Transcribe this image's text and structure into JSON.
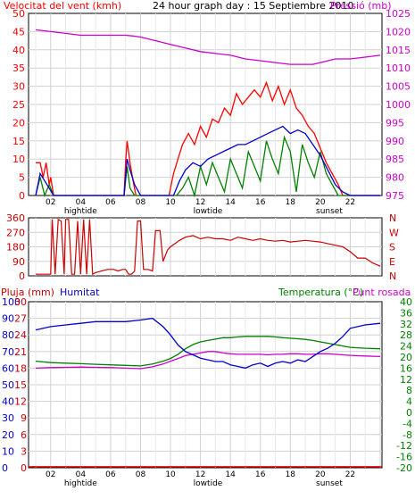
{
  "header": {
    "wind_title": "Velocitat del vent (kmh)",
    "main_title": "24 hour graph day : 15 Septiembre 2010",
    "pressure_title": "Pressió (mb)",
    "rain_title": "Pluja (mm)",
    "humidity_title": "Humitat",
    "temp_title": "Temperatura (°C)",
    "dew_title": "Punt rosada"
  },
  "colors": {
    "wind_avg": "#0000cc",
    "wind_gust": "#ff0000",
    "wind_green": "#008000",
    "pressure": "#cc00cc",
    "direction": "#cc0000",
    "humidity": "#0000cc",
    "temperature": "#008000",
    "dewpoint": "#cc00cc",
    "rain": "#ff0000"
  },
  "chart_data": [
    {
      "type": "line",
      "name": "wind-pressure",
      "x_ticks": [
        "02",
        "04",
        "06",
        "08",
        "10",
        "12",
        "14",
        "16",
        "18",
        "20",
        "22"
      ],
      "markers": [
        "hightide",
        "lowtide",
        "sunset"
      ],
      "y_left_ticks": [
        "0",
        "5",
        "10",
        "15",
        "20",
        "25",
        "30",
        "35",
        "40",
        "45",
        "50"
      ],
      "y_right_ticks": [
        "975",
        "980",
        "985",
        "990",
        "995",
        "1000",
        "1005",
        "1010",
        "1015",
        "1020",
        "1025"
      ],
      "ylim_left": [
        0,
        50
      ],
      "ylim_right": [
        975,
        1025
      ],
      "series": [
        {
          "key": "gust",
          "axis": "left",
          "x": [
            0,
            0.3,
            0.5,
            0.7,
            0.9,
            1.0,
            1.2,
            1.5,
            2,
            5.9,
            6.0,
            6.1,
            6.3,
            6.5,
            6.7,
            7,
            8.9,
            9.2,
            9.5,
            9.8,
            10.2,
            10.6,
            11,
            11.4,
            11.8,
            12.2,
            12.6,
            13,
            13.4,
            13.8,
            14.2,
            14.6,
            15,
            15.4,
            15.8,
            16.2,
            16.6,
            17,
            17.4,
            17.8,
            18.2,
            18.6,
            19,
            19.4,
            19.8,
            20.2,
            20.5,
            21,
            23
          ],
          "y": [
            9,
            9,
            5,
            9,
            3,
            5,
            0,
            0,
            0,
            0,
            9,
            15,
            9,
            4,
            0,
            0,
            0,
            6,
            10,
            14,
            17,
            14,
            19,
            16,
            21,
            20,
            24,
            22,
            28,
            25,
            27,
            29,
            27,
            31,
            26,
            30,
            25,
            29,
            24,
            22,
            19,
            17,
            13,
            9,
            6,
            3,
            0,
            0,
            0
          ]
        },
        {
          "key": "average",
          "axis": "left",
          "x": [
            0,
            0.3,
            0.6,
            0.9,
            1.2,
            1.5,
            5.9,
            6.1,
            6.3,
            6.6,
            7,
            9.2,
            9.6,
            10,
            10.5,
            11,
            11.5,
            12,
            12.5,
            13,
            13.5,
            14,
            14.5,
            15,
            15.5,
            16,
            16.5,
            17,
            17.5,
            18,
            18.5,
            19,
            19.5,
            20,
            20.5,
            21,
            23
          ],
          "y": [
            0,
            6,
            4,
            2,
            0,
            0,
            0,
            10,
            7,
            3,
            0,
            0,
            4,
            7,
            9,
            8,
            10,
            11,
            12,
            13,
            14,
            14,
            15,
            16,
            17,
            18,
            19,
            17,
            18,
            17,
            14,
            11,
            7,
            3,
            1,
            0,
            0
          ]
        },
        {
          "key": "green",
          "axis": "left",
          "x": [
            0,
            0.3,
            0.6,
            0.9,
            1.2,
            5.9,
            6.1,
            6.3,
            6.6,
            9.4,
            9.8,
            10.2,
            10.6,
            11,
            11.4,
            11.8,
            12.2,
            12.6,
            13,
            13.4,
            13.8,
            14.2,
            14.6,
            15,
            15.4,
            15.8,
            16.2,
            16.6,
            17,
            17.4,
            17.8,
            18.2,
            18.6,
            19,
            19.4,
            19.8,
            20.2,
            23
          ],
          "y": [
            0,
            5,
            0,
            3,
            0,
            0,
            8,
            2,
            0,
            0,
            2,
            5,
            0,
            8,
            3,
            9,
            5,
            1,
            10,
            6,
            2,
            12,
            8,
            4,
            15,
            10,
            6,
            16,
            12,
            1,
            14,
            9,
            5,
            12,
            6,
            3,
            0,
            0
          ]
        },
        {
          "key": "pressure",
          "axis": "right",
          "x": [
            0,
            1,
            2,
            3,
            4,
            5,
            6,
            6.5,
            7,
            8,
            9,
            10,
            11,
            12,
            13,
            14,
            15,
            16,
            17,
            17.5,
            18,
            18.5,
            19,
            20,
            21,
            22,
            23
          ],
          "y": [
            1020.5,
            1020,
            1019.5,
            1019,
            1019,
            1019,
            1019,
            1018.8,
            1018.5,
            1017.5,
            1016.5,
            1015.5,
            1014.5,
            1014,
            1013.5,
            1012.5,
            1012,
            1011.5,
            1011,
            1011,
            1011,
            1011,
            1011.5,
            1012.5,
            1012.5,
            1013,
            1013.5
          ]
        }
      ]
    },
    {
      "type": "line",
      "name": "wind-direction",
      "y_left_ticks": [
        "0",
        "90",
        "180",
        "270",
        "360"
      ],
      "y_right_ticks": [
        "N",
        "E",
        "S",
        "W",
        "N"
      ],
      "ylim": [
        0,
        360
      ],
      "series": [
        {
          "key": "direction",
          "x": [
            0,
            1.0,
            1.1,
            1.3,
            1.5,
            1.7,
            1.9,
            2.0,
            2.2,
            2.4,
            2.6,
            2.8,
            3.0,
            3.2,
            3.4,
            3.6,
            3.8,
            4.0,
            4.4,
            4.8,
            5.2,
            5.5,
            5.8,
            6.0,
            6.2,
            6.4,
            6.6,
            6.8,
            7.0,
            7.2,
            7.5,
            7.8,
            8.0,
            8.3,
            8.5,
            8.8,
            9.0,
            9.3,
            9.6,
            10,
            10.5,
            11,
            11.5,
            12,
            12.5,
            13,
            13.5,
            14,
            14.5,
            15,
            15.5,
            16,
            16.5,
            17,
            17.5,
            18,
            18.5,
            19,
            19.5,
            20,
            20.5,
            21,
            21.5,
            22,
            22.5,
            23
          ],
          "y": [
            10,
            10,
            350,
            10,
            350,
            340,
            10,
            350,
            350,
            10,
            10,
            340,
            10,
            350,
            10,
            350,
            10,
            20,
            30,
            40,
            40,
            30,
            40,
            40,
            10,
            10,
            30,
            340,
            340,
            40,
            40,
            30,
            280,
            280,
            90,
            160,
            180,
            200,
            220,
            240,
            250,
            230,
            240,
            230,
            230,
            220,
            240,
            230,
            220,
            230,
            220,
            215,
            220,
            210,
            215,
            220,
            215,
            210,
            200,
            190,
            180,
            150,
            110,
            110,
            80,
            60
          ]
        }
      ]
    },
    {
      "type": "line",
      "name": "temp-humidity-rain",
      "y_rain_ticks": [
        "0",
        "3",
        "6",
        "9",
        "12",
        "15",
        "18",
        "21",
        "24",
        "27",
        "30"
      ],
      "y_humidity_ticks": [
        "0",
        "10",
        "20",
        "30",
        "40",
        "50",
        "60",
        "70",
        "80",
        "90",
        "100"
      ],
      "y_temp_ticks": [
        "-20",
        "-16",
        "-12",
        "-8",
        "-4",
        "0",
        "4",
        "8",
        "12",
        "16",
        "20",
        "24",
        "28",
        "32",
        "36",
        "40"
      ],
      "ylim_rain": [
        0,
        30
      ],
      "ylim_humidity": [
        0,
        100
      ],
      "ylim_temp": [
        -20,
        40
      ],
      "series": [
        {
          "key": "humidity",
          "axis": "humidity",
          "x": [
            0,
            1,
            2,
            3,
            4,
            5,
            6,
            7,
            7.8,
            8.5,
            9,
            9.5,
            10,
            10.5,
            11,
            11.5,
            12,
            12.5,
            13,
            13.5,
            14,
            14.5,
            15,
            15.5,
            16,
            16.5,
            17,
            17.5,
            18,
            18.5,
            19,
            19.5,
            20,
            20.5,
            21,
            22,
            23
          ],
          "y": [
            83,
            85,
            86,
            87,
            88,
            88,
            88,
            89,
            90,
            85,
            80,
            74,
            70,
            68,
            66,
            65,
            64,
            64,
            62,
            61,
            60,
            62,
            63,
            61,
            63,
            64,
            63,
            65,
            64,
            67,
            70,
            72,
            75,
            79,
            84,
            86,
            87
          ]
        },
        {
          "key": "temperature",
          "axis": "temp",
          "x": [
            0,
            1,
            2,
            3,
            4,
            5,
            6,
            7,
            7.8,
            8.5,
            9,
            9.5,
            10,
            10.5,
            11,
            11.5,
            12,
            12.5,
            13,
            13.5,
            14,
            14.5,
            15,
            15.5,
            16,
            16.5,
            17,
            17.5,
            18,
            18.5,
            19,
            19.5,
            20,
            20.5,
            21,
            22,
            23
          ],
          "y": [
            18.5,
            18,
            17.8,
            17.6,
            17.4,
            17.2,
            17,
            16.8,
            17.5,
            18.5,
            19.5,
            21,
            23,
            24.5,
            25.5,
            26,
            26.5,
            27,
            27,
            27.3,
            27.5,
            27.5,
            27.5,
            27.5,
            27.3,
            27,
            26.8,
            26.6,
            26.4,
            26,
            25.5,
            25,
            24.5,
            24,
            23.5,
            23.2,
            23
          ]
        },
        {
          "key": "dewpoint",
          "axis": "temp",
          "x": [
            0,
            1,
            2,
            3,
            4,
            5,
            6,
            7,
            7.8,
            8.5,
            9,
            9.5,
            10,
            10.5,
            11,
            11.5,
            12,
            12.5,
            13,
            13.5,
            14,
            14.5,
            15,
            15.5,
            16,
            16.5,
            17,
            17.5,
            18,
            18.5,
            19,
            19.5,
            20,
            20.5,
            21,
            22,
            23
          ],
          "y": [
            16,
            16.2,
            16.3,
            16.4,
            16.3,
            16.2,
            16,
            15.8,
            16.5,
            17.5,
            18.5,
            19.5,
            20.5,
            21,
            21.5,
            22,
            22,
            21.5,
            21.2,
            21,
            21,
            21,
            21,
            20.8,
            21,
            21,
            21.2,
            21.2,
            21,
            21,
            21.2,
            21.2,
            21,
            20.8,
            20.6,
            20.4,
            20.2
          ]
        },
        {
          "key": "rain",
          "axis": "rain",
          "x": [
            0,
            23
          ],
          "y": [
            0.2,
            0.2
          ]
        }
      ]
    }
  ]
}
